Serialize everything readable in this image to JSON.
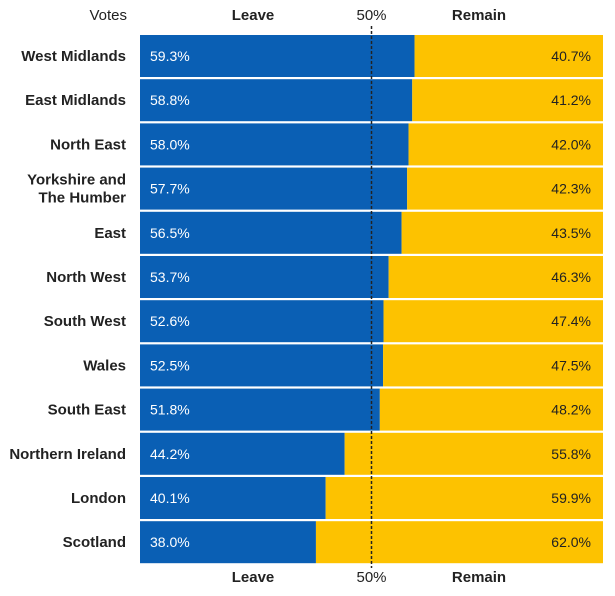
{
  "chart_data": {
    "type": "bar",
    "orientation": "horizontal",
    "stacked": true,
    "column_header": "Votes",
    "midline_label": "50%",
    "categories": [
      "West Midlands",
      "East Midlands",
      "North East",
      "Yorkshire and\nThe Humber",
      "East",
      "North West",
      "South West",
      "Wales",
      "South East",
      "Northern Ireland",
      "London",
      "Scotland"
    ],
    "series": [
      {
        "name": "Leave",
        "values": [
          59.3,
          58.8,
          58.0,
          57.7,
          56.5,
          53.7,
          52.6,
          52.5,
          51.8,
          44.2,
          40.1,
          38.0
        ]
      },
      {
        "name": "Remain",
        "values": [
          40.7,
          41.2,
          42.0,
          42.3,
          43.5,
          46.3,
          47.4,
          47.5,
          48.2,
          55.8,
          59.9,
          62.0
        ]
      }
    ],
    "value_labels": {
      "leave": [
        "59.3%",
        "58.8%",
        "58.0%",
        "57.7%",
        "56.5%",
        "53.7%",
        "52.6%",
        "52.5%",
        "51.8%",
        "44.2%",
        "40.1%",
        "38.0%"
      ],
      "remain": [
        "40.7%",
        "41.2%",
        "42.0%",
        "42.3%",
        "43.5%",
        "46.3%",
        "47.4%",
        "47.5%",
        "48.2%",
        "55.8%",
        "59.9%",
        "62.0%"
      ]
    },
    "xlim": [
      0,
      100
    ],
    "colors": {
      "leave": "#0a5fb4",
      "remain": "#fdc200",
      "midline": "#222222"
    },
    "grid": false,
    "legend": "top and bottom headers"
  }
}
